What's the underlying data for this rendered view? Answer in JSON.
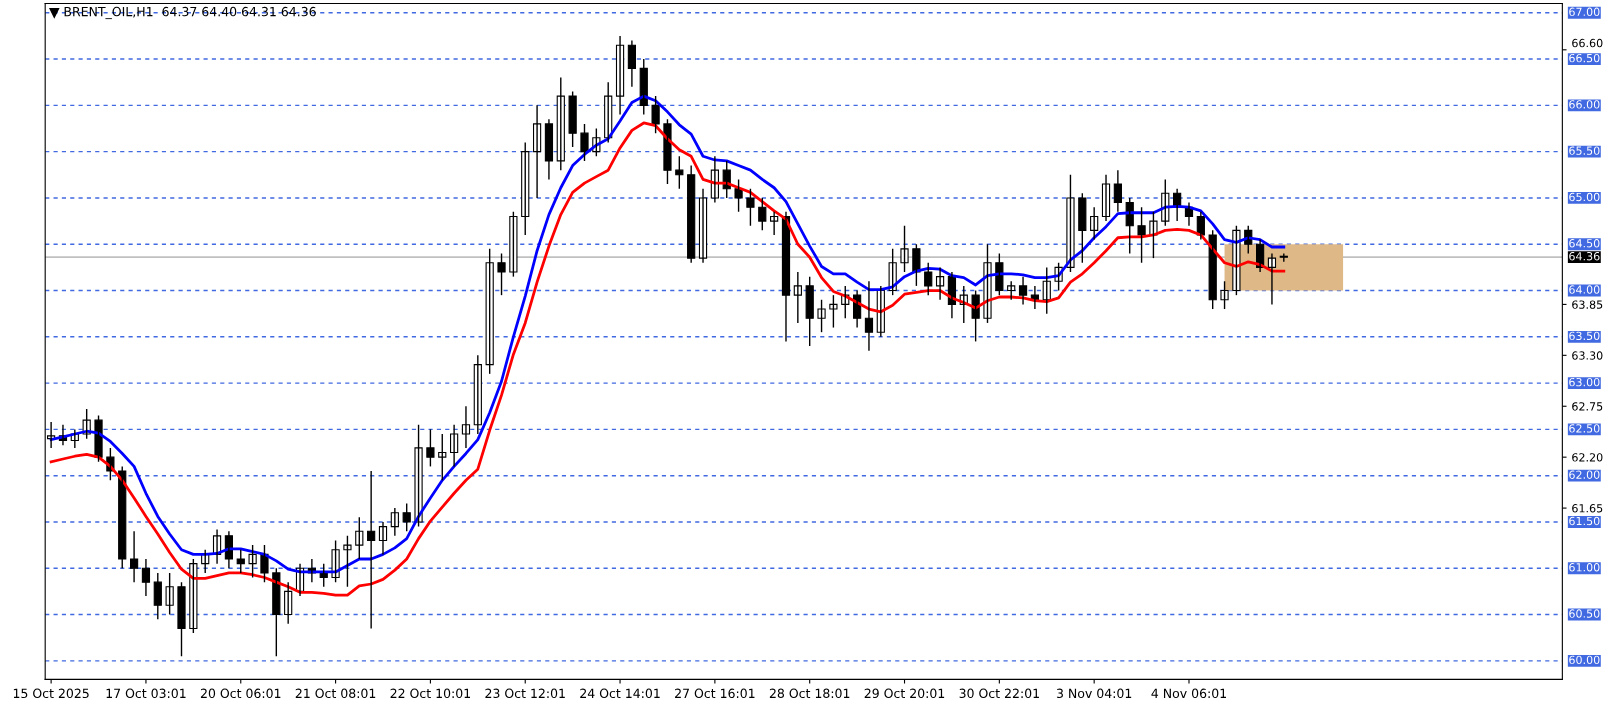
{
  "chart_data": {
    "type": "candlestick",
    "title": "BRENT_OIL,H1  64.37 64.40 64.31 64.36",
    "categories": [
      "15 Oct 2025",
      null,
      null,
      null,
      null,
      null,
      null,
      null,
      "17 Oct 03:01",
      null,
      null,
      null,
      null,
      null,
      null,
      null,
      "20 Oct 06:01",
      null,
      null,
      null,
      null,
      null,
      null,
      null,
      "21 Oct 08:01",
      null,
      null,
      null,
      null,
      null,
      null,
      null,
      "22 Oct 10:01",
      null,
      null,
      null,
      null,
      null,
      null,
      null,
      "23 Oct 12:01",
      null,
      null,
      null,
      null,
      null,
      null,
      null,
      "24 Oct 14:01",
      null,
      null,
      null,
      null,
      null,
      null,
      null,
      "27 Oct 16:01",
      null,
      null,
      null,
      null,
      null,
      null,
      null,
      "28 Oct 18:01",
      null,
      null,
      null,
      null,
      null,
      null,
      null,
      "29 Oct 20:01",
      null,
      null,
      null,
      null,
      null,
      null,
      null,
      "30 Oct 22:01",
      null,
      null,
      null,
      null,
      null,
      null,
      null,
      "3 Nov 04:01",
      null,
      null,
      null,
      null,
      null,
      null,
      null,
      "4 Nov 06:01",
      null,
      null,
      null,
      null,
      null,
      null,
      null,
      null,
      null,
      null,
      null,
      null,
      null,
      null,
      null,
      null,
      null,
      null,
      null,
      null,
      null,
      null,
      null,
      null,
      null,
      null,
      null,
      null,
      null,
      null,
      null
    ],
    "ohlc": [
      [
        62.4,
        62.58,
        62.3,
        62.43
      ],
      [
        62.43,
        62.55,
        62.33,
        62.38
      ],
      [
        62.38,
        62.5,
        62.3,
        62.45
      ],
      [
        62.45,
        62.72,
        62.4,
        62.6
      ],
      [
        62.6,
        62.65,
        62.15,
        62.2
      ],
      [
        62.2,
        62.3,
        61.95,
        62.05
      ],
      [
        62.05,
        62.1,
        61.0,
        61.1
      ],
      [
        61.1,
        61.4,
        60.85,
        61.0
      ],
      [
        61.0,
        61.1,
        60.7,
        60.85
      ],
      [
        60.85,
        60.95,
        60.45,
        60.6
      ],
      [
        60.6,
        60.95,
        60.5,
        60.8
      ],
      [
        60.8,
        60.85,
        60.05,
        60.35
      ],
      [
        60.35,
        61.1,
        60.3,
        61.05
      ],
      [
        61.05,
        61.2,
        60.95,
        61.15
      ],
      [
        61.15,
        61.42,
        61.05,
        61.35
      ],
      [
        61.35,
        61.4,
        61.0,
        61.1
      ],
      [
        61.1,
        61.2,
        60.95,
        61.05
      ],
      [
        61.05,
        61.25,
        60.9,
        61.15
      ],
      [
        61.15,
        61.25,
        60.85,
        60.95
      ],
      [
        60.95,
        61.0,
        60.05,
        60.5
      ],
      [
        60.5,
        60.85,
        60.4,
        60.75
      ],
      [
        60.75,
        61.05,
        60.7,
        61.0
      ],
      [
        61.0,
        61.1,
        60.85,
        60.95
      ],
      [
        60.95,
        61.05,
        60.8,
        60.9
      ],
      [
        60.9,
        61.3,
        60.85,
        61.2
      ],
      [
        61.2,
        61.35,
        60.8,
        61.25
      ],
      [
        61.25,
        61.55,
        61.1,
        61.4
      ],
      [
        61.4,
        62.05,
        60.35,
        61.3
      ],
      [
        61.3,
        61.5,
        61.15,
        61.45
      ],
      [
        61.45,
        61.65,
        61.35,
        61.6
      ],
      [
        61.6,
        61.7,
        61.4,
        61.5
      ],
      [
        61.5,
        62.55,
        61.45,
        62.3
      ],
      [
        62.3,
        62.5,
        62.1,
        62.2
      ],
      [
        62.2,
        62.45,
        61.95,
        62.25
      ],
      [
        62.25,
        62.55,
        62.1,
        62.45
      ],
      [
        62.45,
        62.75,
        62.3,
        62.55
      ],
      [
        62.55,
        63.3,
        62.45,
        63.2
      ],
      [
        63.2,
        64.45,
        63.1,
        64.3
      ],
      [
        64.3,
        64.4,
        63.95,
        64.2
      ],
      [
        64.2,
        64.85,
        64.15,
        64.8
      ],
      [
        64.8,
        65.6,
        64.6,
        65.5
      ],
      [
        65.5,
        66.0,
        65.0,
        65.8
      ],
      [
        65.8,
        65.85,
        65.2,
        65.4
      ],
      [
        65.4,
        66.3,
        65.3,
        66.1
      ],
      [
        66.1,
        66.15,
        65.55,
        65.7
      ],
      [
        65.7,
        65.8,
        65.4,
        65.5
      ],
      [
        65.5,
        65.75,
        65.45,
        65.65
      ],
      [
        65.65,
        66.25,
        65.6,
        66.1
      ],
      [
        66.1,
        66.75,
        65.9,
        66.65
      ],
      [
        66.65,
        66.7,
        66.2,
        66.4
      ],
      [
        66.4,
        66.5,
        65.9,
        66.0
      ],
      [
        66.0,
        66.1,
        65.7,
        65.8
      ],
      [
        65.8,
        65.85,
        65.15,
        65.3
      ],
      [
        65.3,
        65.45,
        65.1,
        65.25
      ],
      [
        65.25,
        65.35,
        64.3,
        64.35
      ],
      [
        64.35,
        65.1,
        64.3,
        65.0
      ],
      [
        65.0,
        65.45,
        64.95,
        65.3
      ],
      [
        65.3,
        65.4,
        65.0,
        65.1
      ],
      [
        65.1,
        65.2,
        64.85,
        65.0
      ],
      [
        65.0,
        65.1,
        64.7,
        64.9
      ],
      [
        64.9,
        65.0,
        64.65,
        64.75
      ],
      [
        64.75,
        64.85,
        64.6,
        64.8
      ],
      [
        64.8,
        64.85,
        63.45,
        63.95
      ],
      [
        63.95,
        64.2,
        63.65,
        64.05
      ],
      [
        64.05,
        64.15,
        63.4,
        63.7
      ],
      [
        63.7,
        63.9,
        63.55,
        63.8
      ],
      [
        63.8,
        63.95,
        63.6,
        63.85
      ],
      [
        63.85,
        64.05,
        63.7,
        63.95
      ],
      [
        63.95,
        64.0,
        63.6,
        63.7
      ],
      [
        63.7,
        64.1,
        63.35,
        63.55
      ],
      [
        63.55,
        64.05,
        63.5,
        64.0
      ],
      [
        64.0,
        64.45,
        63.95,
        64.3
      ],
      [
        64.3,
        64.7,
        64.2,
        64.45
      ],
      [
        64.45,
        64.5,
        64.05,
        64.2
      ],
      [
        64.2,
        64.3,
        63.95,
        64.05
      ],
      [
        64.05,
        64.25,
        63.9,
        64.15
      ],
      [
        64.15,
        64.2,
        63.7,
        63.85
      ],
      [
        63.85,
        64.05,
        63.65,
        63.95
      ],
      [
        63.95,
        64.0,
        63.45,
        63.7
      ],
      [
        63.7,
        64.5,
        63.65,
        64.3
      ],
      [
        64.3,
        64.4,
        63.95,
        64.0
      ],
      [
        64.0,
        64.1,
        63.9,
        64.05
      ],
      [
        64.05,
        64.15,
        63.85,
        63.95
      ],
      [
        63.95,
        64.05,
        63.8,
        63.9
      ],
      [
        63.9,
        64.25,
        63.75,
        64.1
      ],
      [
        64.1,
        64.3,
        64.0,
        64.25
      ],
      [
        64.25,
        65.25,
        64.2,
        65.0
      ],
      [
        65.0,
        65.05,
        64.3,
        64.65
      ],
      [
        64.65,
        64.9,
        64.55,
        64.8
      ],
      [
        64.8,
        65.25,
        64.75,
        65.15
      ],
      [
        65.15,
        65.3,
        64.85,
        64.95
      ],
      [
        64.95,
        65.0,
        64.4,
        64.7
      ],
      [
        64.7,
        64.9,
        64.3,
        64.6
      ],
      [
        64.6,
        64.85,
        64.35,
        64.75
      ],
      [
        64.75,
        65.2,
        64.7,
        65.05
      ],
      [
        65.05,
        65.1,
        64.75,
        64.9
      ],
      [
        64.9,
        64.95,
        64.7,
        64.8
      ],
      [
        64.8,
        64.85,
        64.55,
        64.6
      ],
      [
        64.6,
        64.65,
        63.8,
        63.9
      ],
      [
        63.9,
        64.1,
        63.8,
        64.0
      ],
      [
        64.0,
        64.7,
        63.95,
        64.65
      ],
      [
        64.65,
        64.7,
        64.4,
        64.5
      ],
      [
        64.5,
        64.55,
        64.2,
        64.25
      ],
      [
        64.25,
        64.4,
        63.85,
        64.35
      ],
      [
        64.37,
        64.4,
        64.31,
        64.36
      ],
      null,
      null,
      null,
      null,
      null,
      null,
      null,
      null,
      null,
      null,
      null,
      null,
      null,
      null,
      null,
      null,
      null,
      null,
      null,
      null,
      null,
      null,
      null
    ],
    "series": [
      {
        "type": "line",
        "color": "#0000ff",
        "values": [
          62.39,
          62.42,
          62.45,
          62.48,
          62.46,
          62.37,
          62.24,
          62.1,
          61.81,
          61.56,
          61.37,
          61.2,
          61.15,
          61.15,
          61.16,
          61.21,
          61.21,
          61.18,
          61.15,
          61.08,
          60.99,
          60.96,
          60.96,
          60.96,
          60.96,
          61.03,
          61.1,
          61.1,
          61.15,
          61.22,
          61.32,
          61.56,
          61.76,
          61.95,
          62.1,
          62.24,
          62.39,
          62.68,
          63.02,
          63.5,
          63.94,
          64.43,
          64.82,
          65.11,
          65.35,
          65.47,
          65.57,
          65.64,
          65.83,
          66.03,
          66.1,
          66.05,
          65.93,
          65.79,
          65.69,
          65.45,
          65.41,
          65.4,
          65.35,
          65.3,
          65.2,
          65.11,
          64.96,
          64.72,
          64.48,
          64.26,
          64.18,
          64.18,
          64.09,
          64.01,
          64.01,
          64.04,
          64.15,
          64.21,
          64.24,
          64.23,
          64.16,
          64.14,
          64.06,
          64.16,
          64.18,
          64.18,
          64.17,
          64.14,
          64.14,
          64.16,
          64.33,
          64.43,
          64.57,
          64.69,
          64.83,
          64.84,
          64.84,
          64.84,
          64.9,
          64.91,
          64.9,
          64.86,
          64.72,
          64.55,
          64.52,
          64.57,
          64.55,
          64.47,
          64.47,
          null,
          null,
          null,
          null,
          null,
          null,
          null,
          null,
          null,
          null,
          null,
          null,
          null,
          null,
          null,
          null,
          null,
          null,
          null,
          null,
          null,
          null,
          null
        ]
      },
      {
        "type": "line",
        "color": "#ff0000",
        "values": [
          62.15,
          62.18,
          62.21,
          62.23,
          62.2,
          62.1,
          61.95,
          61.76,
          61.56,
          61.37,
          61.17,
          60.99,
          60.89,
          60.89,
          60.92,
          60.95,
          60.95,
          60.93,
          60.9,
          60.85,
          60.8,
          60.74,
          60.74,
          60.73,
          60.71,
          60.71,
          60.81,
          60.83,
          60.88,
          60.98,
          61.1,
          61.32,
          61.51,
          61.66,
          61.81,
          61.95,
          62.07,
          62.49,
          62.87,
          63.31,
          63.65,
          64.09,
          64.48,
          64.82,
          65.06,
          65.16,
          65.23,
          65.3,
          65.54,
          65.73,
          65.81,
          65.78,
          65.64,
          65.52,
          65.45,
          65.2,
          65.16,
          65.16,
          65.11,
          65.06,
          64.96,
          64.86,
          64.77,
          64.5,
          64.36,
          64.14,
          63.99,
          63.94,
          63.87,
          63.8,
          63.77,
          63.84,
          63.96,
          63.98,
          64.0,
          64.0,
          63.92,
          63.87,
          63.81,
          63.89,
          63.93,
          63.93,
          63.92,
          63.89,
          63.88,
          63.92,
          64.09,
          64.18,
          64.3,
          64.43,
          64.57,
          64.58,
          64.58,
          64.6,
          64.65,
          64.66,
          64.65,
          64.6,
          64.45,
          64.3,
          64.26,
          64.31,
          64.28,
          64.21,
          64.21,
          null,
          null,
          null,
          null,
          null,
          null,
          null,
          null,
          null,
          null,
          null,
          null,
          null,
          null,
          null,
          null,
          null,
          null,
          null,
          null,
          null,
          null,
          null
        ]
      },
      {
        "type": "area",
        "color": "#deb887",
        "values": [
          null,
          null,
          null,
          null,
          null,
          null,
          null,
          null,
          null,
          null,
          null,
          null,
          null,
          null,
          null,
          null,
          null,
          null,
          null,
          null,
          null,
          null,
          null,
          null,
          null,
          null,
          null,
          null,
          null,
          null,
          null,
          null,
          null,
          null,
          null,
          null,
          null,
          null,
          null,
          null,
          null,
          null,
          null,
          null,
          null,
          null,
          null,
          null,
          null,
          null,
          null,
          null,
          null,
          null,
          null,
          null,
          null,
          null,
          null,
          null,
          null,
          null,
          null,
          null,
          null,
          null,
          null,
          null,
          null,
          null,
          null,
          null,
          null,
          null,
          null,
          null,
          null,
          null,
          null,
          null,
          null,
          null,
          null,
          null,
          null,
          null,
          null,
          null,
          null,
          null,
          null,
          null,
          null,
          null,
          null,
          null,
          null,
          null,
          null,
          null,
          null,
          null,
          null,
          null,
          null,
          null,
          null,
          null,
          null,
          null,
          null,
          null,
          null,
          null,
          null,
          null,
          null,
          null,
          null,
          null,
          null,
          null,
          null,
          null,
          null,
          null,
          null,
          null
        ],
        "upper": [
          null,
          null,
          null,
          null,
          null,
          null,
          null,
          null,
          null,
          null,
          null,
          null,
          null,
          null,
          null,
          null,
          null,
          null,
          null,
          null,
          null,
          null,
          null,
          null,
          null,
          null,
          null,
          null,
          null,
          null,
          null,
          null,
          null,
          null,
          null,
          null,
          null,
          null,
          null,
          null,
          null,
          null,
          null,
          null,
          null,
          null,
          null,
          null,
          null,
          null,
          null,
          null,
          null,
          null,
          null,
          null,
          null,
          null,
          null,
          null,
          null,
          null,
          null,
          null,
          null,
          null,
          null,
          null,
          null,
          null,
          null,
          null,
          null,
          null,
          null,
          null,
          null,
          null,
          null,
          null,
          null,
          null,
          null,
          null,
          null,
          null,
          null,
          null,
          null,
          null,
          null,
          null,
          null,
          null,
          null,
          null,
          null,
          null,
          null,
          64.5,
          64.5,
          64.5,
          64.5,
          64.5,
          64.5,
          64.5,
          64.5,
          64.5,
          64.5,
          64.5,
          null,
          null,
          null,
          null,
          null,
          null,
          null,
          null,
          null,
          null,
          null,
          null,
          null,
          null,
          null,
          null,
          null,
          null
        ],
        "lower": [
          null,
          null,
          null,
          null,
          null,
          null,
          null,
          null,
          null,
          null,
          null,
          null,
          null,
          null,
          null,
          null,
          null,
          null,
          null,
          null,
          null,
          null,
          null,
          null,
          null,
          null,
          null,
          null,
          null,
          null,
          null,
          null,
          null,
          null,
          null,
          null,
          null,
          null,
          null,
          null,
          null,
          null,
          null,
          null,
          null,
          null,
          null,
          null,
          null,
          null,
          null,
          null,
          null,
          null,
          null,
          null,
          null,
          null,
          null,
          null,
          null,
          null,
          null,
          null,
          null,
          null,
          null,
          null,
          null,
          null,
          null,
          null,
          null,
          null,
          null,
          null,
          null,
          null,
          null,
          null,
          null,
          null,
          null,
          null,
          null,
          null,
          null,
          null,
          null,
          null,
          null,
          null,
          null,
          null,
          null,
          null,
          null,
          null,
          null,
          64.0,
          64.0,
          64.0,
          64.0,
          64.0,
          64.0,
          64.0,
          64.0,
          64.0,
          64.0,
          64.0,
          null,
          null,
          null,
          null,
          null,
          null,
          null,
          null,
          null,
          null,
          null,
          null,
          null,
          null,
          null,
          null,
          null,
          null
        ]
      }
    ],
    "ylim": [
      59.8,
      67.1
    ],
    "yticks": [
      {
        "value": 66.6,
        "label": "66.60"
      },
      {
        "value": 63.85,
        "label": "63.85"
      },
      {
        "value": 63.3,
        "label": "63.30"
      },
      {
        "value": 62.75,
        "label": "62.75"
      },
      {
        "value": 62.2,
        "label": "62.20"
      },
      {
        "value": 61.65,
        "label": "61.65"
      }
    ],
    "ref_lines": [
      {
        "axis": "y",
        "value": 67.0,
        "label": "67.00",
        "color": "#4169e1",
        "line_style": "dashed"
      },
      {
        "axis": "y",
        "value": 66.5,
        "label": "66.50",
        "color": "#4169e1",
        "line_style": "dashed"
      },
      {
        "axis": "y",
        "value": 66.0,
        "label": "66.00",
        "color": "#4169e1",
        "line_style": "dashed"
      },
      {
        "axis": "y",
        "value": 65.5,
        "label": "65.50",
        "color": "#4169e1",
        "line_style": "dashed"
      },
      {
        "axis": "y",
        "value": 65.0,
        "label": "65.00",
        "color": "#4169e1",
        "line_style": "dashed"
      },
      {
        "axis": "y",
        "value": 64.5,
        "label": "64.50",
        "color": "#4169e1",
        "line_style": "dashed"
      },
      {
        "axis": "y",
        "value": 64.0,
        "label": "64.00",
        "color": "#4169e1",
        "line_style": "dashed"
      },
      {
        "axis": "y",
        "value": 63.5,
        "label": "63.50",
        "color": "#4169e1",
        "line_style": "dashed"
      },
      {
        "axis": "y",
        "value": 63.0,
        "label": "63.00",
        "color": "#4169e1",
        "line_style": "dashed"
      },
      {
        "axis": "y",
        "value": 62.5,
        "label": "62.50",
        "color": "#4169e1",
        "line_style": "dashed"
      },
      {
        "axis": "y",
        "value": 62.0,
        "label": "62.00",
        "color": "#4169e1",
        "line_style": "dashed"
      },
      {
        "axis": "y",
        "value": 61.5,
        "label": "61.50",
        "color": "#4169e1",
        "line_style": "dashed"
      },
      {
        "axis": "y",
        "value": 61.0,
        "label": "61.00",
        "color": "#4169e1",
        "line_style": "dashed"
      },
      {
        "axis": "y",
        "value": 60.5,
        "label": "60.50",
        "color": "#4169e1",
        "line_style": "dashed"
      },
      {
        "axis": "y",
        "value": 60.0,
        "label": "60.00",
        "color": "#4169e1",
        "line_style": "dashed"
      },
      {
        "axis": "y",
        "value": 64.36,
        "label": "64.36",
        "color": "#c0c0c0",
        "line_style": "solid"
      }
    ]
  }
}
